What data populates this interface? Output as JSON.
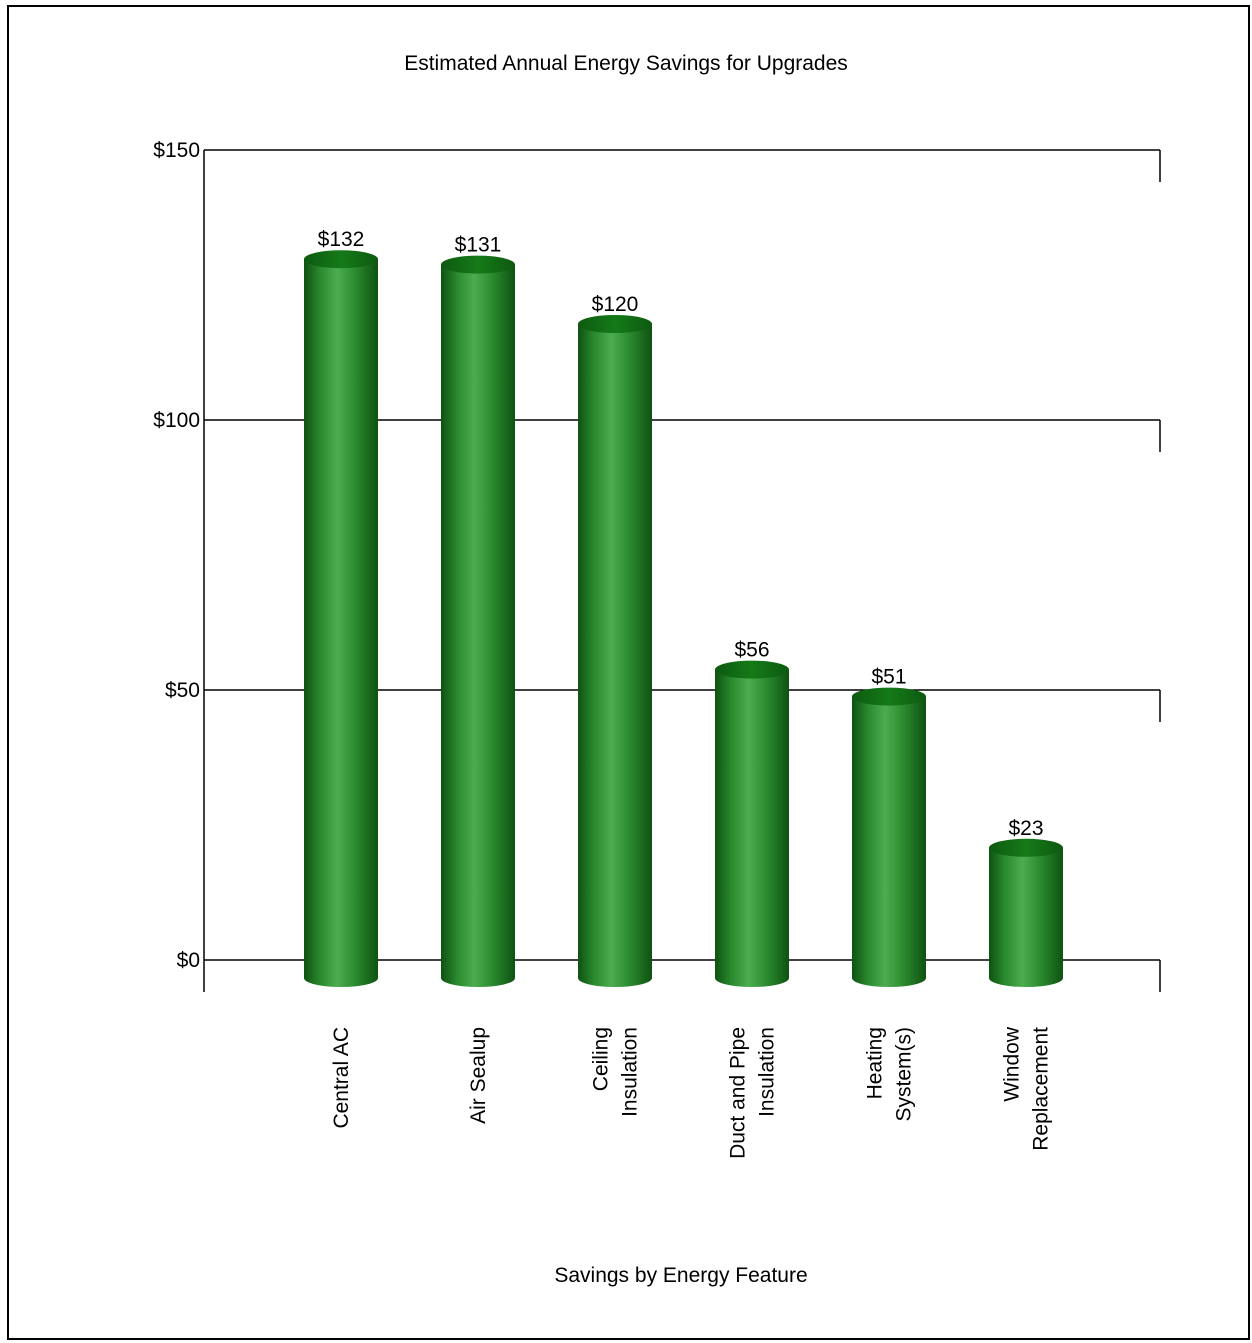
{
  "chart_data": {
    "type": "bar",
    "title": "Estimated Annual Energy Savings for Upgrades",
    "xlabel": "Savings by Energy Feature",
    "ylabel": "",
    "ylim": [
      0,
      150
    ],
    "yticks": [
      0,
      50,
      100,
      150
    ],
    "ytick_labels": [
      "$0",
      "$50",
      "$100",
      "$150"
    ],
    "categories": [
      [
        "Central AC"
      ],
      [
        "Air Sealup"
      ],
      [
        "Ceiling",
        "Insulation"
      ],
      [
        "Duct and Pipe",
        "Insulation"
      ],
      [
        "Heating",
        "System(s)"
      ],
      [
        "Window",
        "Replacement"
      ]
    ],
    "values": [
      132,
      131,
      120,
      56,
      51,
      23
    ],
    "data_labels": [
      "$132",
      "$131",
      "$120",
      "$56",
      "$51",
      "$23"
    ],
    "grid": true,
    "bar_style": "cylinder",
    "bar_color": "#1f7a22",
    "legend": "none"
  }
}
